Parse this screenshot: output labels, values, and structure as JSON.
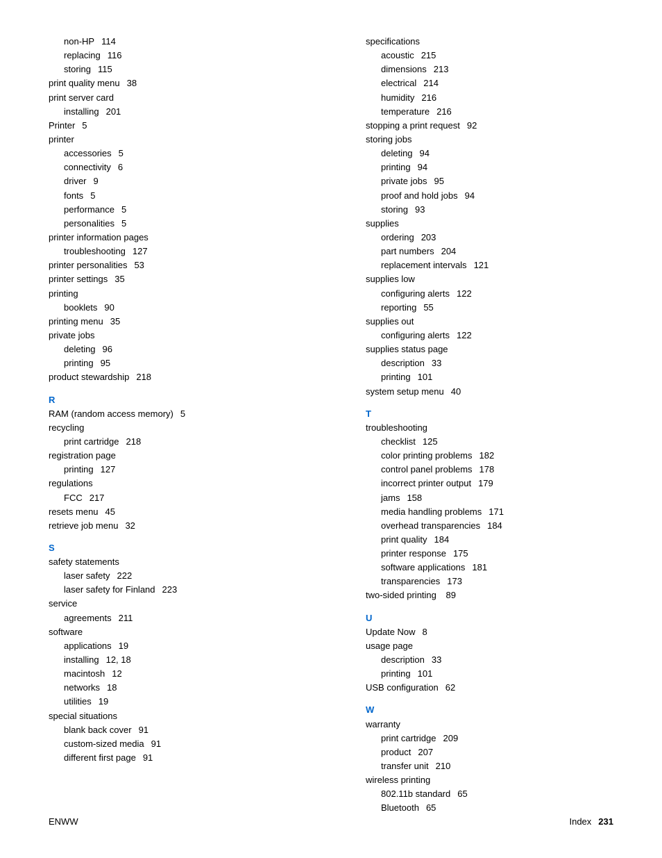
{
  "footer": {
    "left": "ENWW",
    "right_label": "Index",
    "page_number": "231"
  },
  "colors": {
    "link": "#0066cc",
    "text": "#000000",
    "background": "#ffffff"
  },
  "left_column": [
    {
      "type": "sub",
      "term": "non-HP",
      "pages": "114"
    },
    {
      "type": "sub",
      "term": "replacing",
      "pages": "116"
    },
    {
      "type": "sub",
      "term": "storing",
      "pages": "115"
    },
    {
      "type": "top",
      "term": "print quality menu",
      "pages": "38"
    },
    {
      "type": "top",
      "term": "print server card",
      "pages": ""
    },
    {
      "type": "sub",
      "term": "installing",
      "pages": "201"
    },
    {
      "type": "top",
      "term": "Printer",
      "pages": "5"
    },
    {
      "type": "top",
      "term": "printer",
      "pages": ""
    },
    {
      "type": "sub",
      "term": "accessories",
      "pages": "5"
    },
    {
      "type": "sub",
      "term": "connectivity",
      "pages": "6"
    },
    {
      "type": "sub",
      "term": "driver",
      "pages": "9"
    },
    {
      "type": "sub",
      "term": "fonts",
      "pages": "5"
    },
    {
      "type": "sub",
      "term": "performance",
      "pages": "5"
    },
    {
      "type": "sub",
      "term": "personalities",
      "pages": "5"
    },
    {
      "type": "top",
      "term": "printer information pages",
      "pages": ""
    },
    {
      "type": "sub",
      "term": "troubleshooting",
      "pages": "127"
    },
    {
      "type": "top",
      "term": "printer personalities",
      "pages": "53"
    },
    {
      "type": "top",
      "term": "printer settings",
      "pages": "35"
    },
    {
      "type": "top",
      "term": "printing",
      "pages": ""
    },
    {
      "type": "sub",
      "term": "booklets",
      "pages": "90"
    },
    {
      "type": "top",
      "term": "printing menu",
      "pages": "35"
    },
    {
      "type": "top",
      "term": "private jobs",
      "pages": ""
    },
    {
      "type": "sub",
      "term": "deleting",
      "pages": "96"
    },
    {
      "type": "sub",
      "term": "printing",
      "pages": "95"
    },
    {
      "type": "top",
      "term": "product stewardship",
      "pages": "218"
    },
    {
      "type": "letter",
      "term": "R"
    },
    {
      "type": "top",
      "term": "RAM (random access memory)",
      "pages": "5"
    },
    {
      "type": "top",
      "term": "recycling",
      "pages": ""
    },
    {
      "type": "sub",
      "term": "print cartridge",
      "pages": "218"
    },
    {
      "type": "top",
      "term": "registration page",
      "pages": ""
    },
    {
      "type": "sub",
      "term": "printing",
      "pages": "127"
    },
    {
      "type": "top",
      "term": "regulations",
      "pages": ""
    },
    {
      "type": "sub",
      "term": "FCC",
      "pages": "217"
    },
    {
      "type": "top",
      "term": "resets menu",
      "pages": "45"
    },
    {
      "type": "top",
      "term": "retrieve job menu",
      "pages": "32"
    },
    {
      "type": "letter",
      "term": "S"
    },
    {
      "type": "top",
      "term": "safety statements",
      "pages": ""
    },
    {
      "type": "sub",
      "term": "laser safety",
      "pages": "222"
    },
    {
      "type": "sub",
      "term": "laser safety for Finland",
      "pages": "223"
    },
    {
      "type": "top",
      "term": "service",
      "pages": ""
    },
    {
      "type": "sub",
      "term": "agreements",
      "pages": "211"
    },
    {
      "type": "top",
      "term": "software",
      "pages": ""
    },
    {
      "type": "sub",
      "term": "applications",
      "pages": "19"
    },
    {
      "type": "sub",
      "term": "installing",
      "pages": "12, 18"
    },
    {
      "type": "sub",
      "term": "macintosh",
      "pages": "12"
    },
    {
      "type": "sub",
      "term": "networks",
      "pages": "18"
    },
    {
      "type": "sub",
      "term": "utilities",
      "pages": "19"
    },
    {
      "type": "top",
      "term": "special situations",
      "pages": ""
    },
    {
      "type": "sub",
      "term": "blank back cover",
      "pages": "91"
    },
    {
      "type": "sub",
      "term": "custom-sized media",
      "pages": "91"
    },
    {
      "type": "sub",
      "term": "different first page",
      "pages": "91"
    }
  ],
  "right_column": [
    {
      "type": "top",
      "term": "specifications",
      "pages": ""
    },
    {
      "type": "sub",
      "term": "acoustic",
      "pages": "215"
    },
    {
      "type": "sub",
      "term": "dimensions",
      "pages": "213"
    },
    {
      "type": "sub",
      "term": "electrical",
      "pages": "214"
    },
    {
      "type": "sub",
      "term": "humidity",
      "pages": "216"
    },
    {
      "type": "sub",
      "term": "temperature",
      "pages": "216"
    },
    {
      "type": "top",
      "term": "stopping a print request",
      "pages": "92"
    },
    {
      "type": "top",
      "term": "storing jobs",
      "pages": ""
    },
    {
      "type": "sub",
      "term": "deleting",
      "pages": "94"
    },
    {
      "type": "sub",
      "term": "printing",
      "pages": "94"
    },
    {
      "type": "sub",
      "term": "private jobs",
      "pages": "95"
    },
    {
      "type": "sub",
      "term": "proof and hold jobs",
      "pages": "94"
    },
    {
      "type": "sub",
      "term": "storing",
      "pages": "93"
    },
    {
      "type": "top",
      "term": "supplies",
      "pages": ""
    },
    {
      "type": "sub",
      "term": "ordering",
      "pages": "203"
    },
    {
      "type": "sub",
      "term": "part numbers",
      "pages": "204"
    },
    {
      "type": "sub",
      "term": "replacement intervals",
      "pages": "121"
    },
    {
      "type": "top",
      "term": "supplies low",
      "pages": ""
    },
    {
      "type": "sub",
      "term": "configuring alerts",
      "pages": "122"
    },
    {
      "type": "sub",
      "term": "reporting",
      "pages": "55"
    },
    {
      "type": "top",
      "term": "supplies out",
      "pages": ""
    },
    {
      "type": "sub",
      "term": "configuring alerts",
      "pages": "122"
    },
    {
      "type": "top",
      "term": "supplies status page",
      "pages": ""
    },
    {
      "type": "sub",
      "term": "description",
      "pages": "33"
    },
    {
      "type": "sub",
      "term": "printing",
      "pages": "101"
    },
    {
      "type": "top",
      "term": "system setup menu",
      "pages": "40"
    },
    {
      "type": "letter",
      "term": "T"
    },
    {
      "type": "top",
      "term": "troubleshooting",
      "pages": ""
    },
    {
      "type": "sub",
      "term": "checklist",
      "pages": "125"
    },
    {
      "type": "sub",
      "term": "color printing problems",
      "pages": "182"
    },
    {
      "type": "sub",
      "term": "control panel problems",
      "pages": "178"
    },
    {
      "type": "sub",
      "term": "incorrect printer output",
      "pages": "179"
    },
    {
      "type": "sub",
      "term": "jams",
      "pages": "158"
    },
    {
      "type": "sub",
      "term": "media handling problems",
      "pages": "171"
    },
    {
      "type": "sub",
      "term": "overhead transparencies",
      "pages": "184"
    },
    {
      "type": "sub",
      "term": "print quality",
      "pages": "184"
    },
    {
      "type": "sub",
      "term": "printer response",
      "pages": "175"
    },
    {
      "type": "sub",
      "term": "software applications",
      "pages": "181"
    },
    {
      "type": "sub",
      "term": "transparencies",
      "pages": "173"
    },
    {
      "type": "top",
      "term": "two-sided printing",
      "pages": " 89"
    },
    {
      "type": "letter",
      "term": "U"
    },
    {
      "type": "top",
      "term": "Update Now",
      "pages": "8"
    },
    {
      "type": "top",
      "term": "usage page",
      "pages": ""
    },
    {
      "type": "sub",
      "term": "description",
      "pages": "33"
    },
    {
      "type": "sub",
      "term": "printing",
      "pages": "101"
    },
    {
      "type": "top",
      "term": "USB configuration",
      "pages": "62"
    },
    {
      "type": "letter",
      "term": "W"
    },
    {
      "type": "top",
      "term": "warranty",
      "pages": ""
    },
    {
      "type": "sub",
      "term": "print cartridge",
      "pages": "209"
    },
    {
      "type": "sub",
      "term": "product",
      "pages": "207"
    },
    {
      "type": "sub",
      "term": "transfer unit",
      "pages": "210"
    },
    {
      "type": "top",
      "term": "wireless printing",
      "pages": ""
    },
    {
      "type": "sub",
      "term": "802.11b standard",
      "pages": "65"
    },
    {
      "type": "sub",
      "term": "Bluetooth",
      "pages": "65"
    }
  ]
}
